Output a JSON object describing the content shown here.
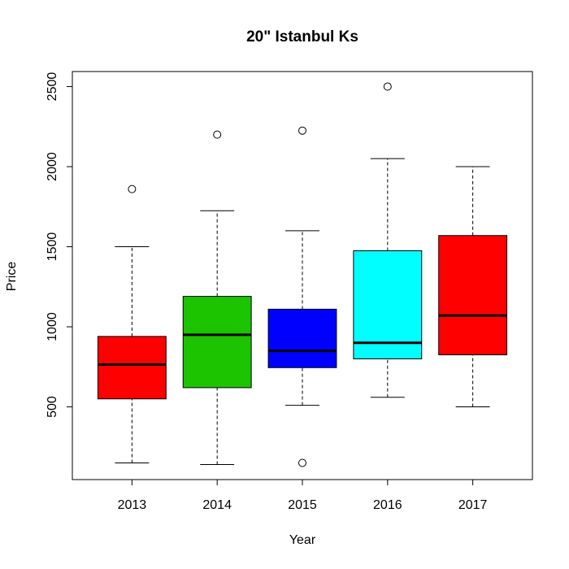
{
  "chart_data": {
    "type": "boxplot",
    "title": "20\" Istanbul Ks",
    "x_label": "Year",
    "y_label": "Price",
    "categories": [
      "2013",
      "2014",
      "2015",
      "2016",
      "2017"
    ],
    "boxes": [
      {
        "low": 150,
        "q1": 550,
        "median": 765,
        "q3": 940,
        "high": 1500,
        "outliers": [
          1860
        ]
      },
      {
        "low": 140,
        "q1": 620,
        "median": 950,
        "q3": 1190,
        "high": 1725,
        "outliers": [
          2200
        ]
      },
      {
        "low": 510,
        "q1": 745,
        "median": 850,
        "q3": 1110,
        "high": 1600,
        "outliers": [
          2225,
          150
        ]
      },
      {
        "low": 560,
        "q1": 800,
        "median": 900,
        "q3": 1475,
        "high": 2050,
        "outliers": [
          2500
        ]
      },
      {
        "low": 500,
        "q1": 825,
        "median": 1070,
        "q3": 1570,
        "high": 2000,
        "outliers": []
      }
    ],
    "colors": [
      "#ff0000",
      "#1cc400",
      "#0000ff",
      "#00ffff",
      "#ff0000"
    ],
    "ylim": [
      46,
      2594
    ],
    "yticks": [
      500,
      1000,
      1500,
      2000,
      2500
    ]
  }
}
